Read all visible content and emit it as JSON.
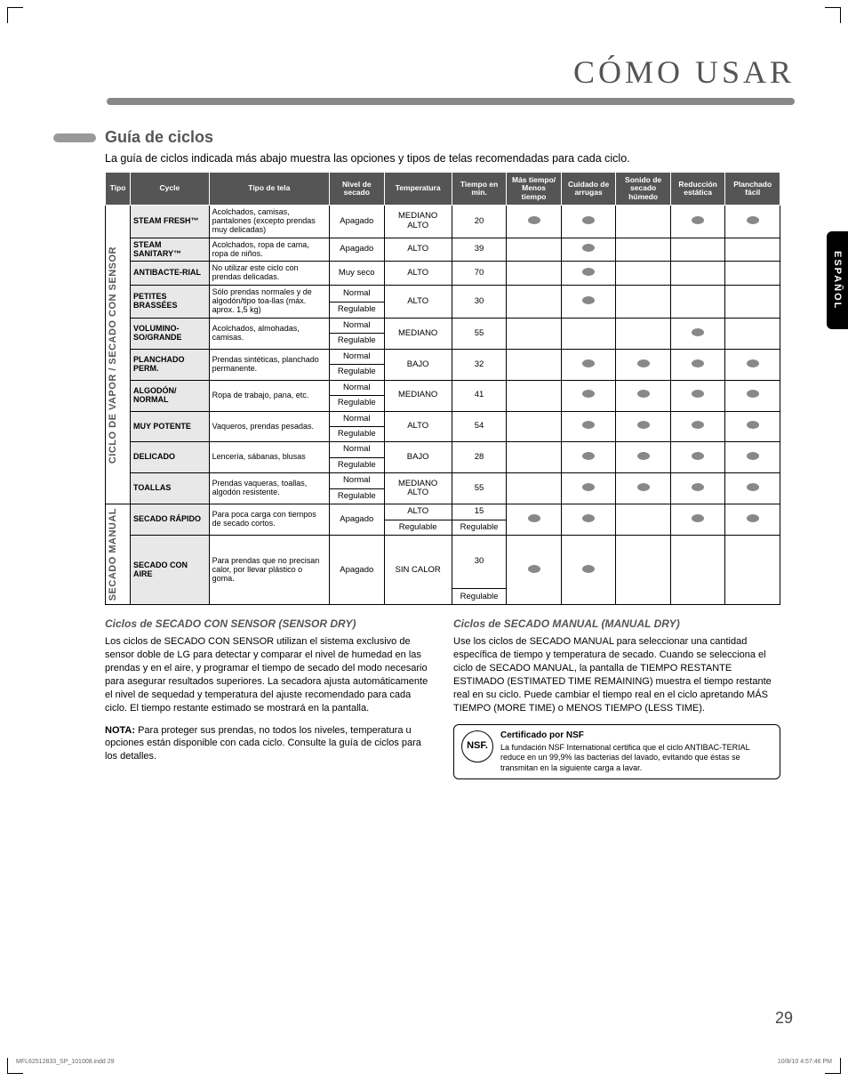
{
  "page_title": "CÓMO USAR",
  "side_tab": "ESPAÑOL",
  "section_title": "Guía de ciclos",
  "intro": "La guía de ciclos indicada más abajo muestra las opciones y tipos de telas recomendadas para cada ciclo.",
  "headers": {
    "tipo": "Tipo",
    "cycle": "Cycle",
    "tipo_tela": "Tipo de tela",
    "nivel": "Nivel de secado",
    "temp": "Temperatura",
    "tiempo": "Tiempo en min.",
    "mas": "Más tiempo/ Menos tiempo",
    "cuidado": "Cuidado de arrugas",
    "sonido": "Sonido de secado húmedo",
    "reduccion": "Reducción estática",
    "planchado": "Planchado fácil"
  },
  "group1_label": "CICLO DE VAPOR / SECADO CON SENSOR",
  "group2_label": "SECADO MANUAL",
  "rows": [
    {
      "cycle": "STEAM FRESH™",
      "fabric": "Acolchados, camisas, pantalones (excepto prendas muy delicadas)",
      "dry": [
        "Apagado"
      ],
      "temp": [
        "MEDIANO ALTO"
      ],
      "time": [
        "20"
      ],
      "mas": true,
      "cuidado": true,
      "sonido": false,
      "reduc": true,
      "plan": true
    },
    {
      "cycle": "STEAM SANITARY™",
      "fabric": "Acolchados, ropa de cama, ropa de niños.",
      "dry": [
        "Apagado"
      ],
      "temp": [
        "ALTO"
      ],
      "time": [
        "39"
      ],
      "mas": false,
      "cuidado": true,
      "sonido": false,
      "reduc": false,
      "plan": false
    },
    {
      "cycle": "ANTIBACTE-RIAL",
      "fabric": "No utilizar este ciclo con prendas delicadas.",
      "dry": [
        "Muy seco"
      ],
      "temp": [
        "ALTO"
      ],
      "time": [
        "70"
      ],
      "mas": false,
      "cuidado": true,
      "sonido": false,
      "reduc": false,
      "plan": false
    },
    {
      "cycle": "PETITES BRASSÉES",
      "fabric": "Sólo prendas normales y de algodón/tipo toa-llas (máx. aprox. 1,5 kg)",
      "dry": [
        "Normal",
        "Regulable"
      ],
      "temp": [
        "ALTO"
      ],
      "time": [
        "30"
      ],
      "mas": false,
      "cuidado": true,
      "sonido": false,
      "reduc": false,
      "plan": false
    },
    {
      "cycle": "VOLUMINO-SO/GRANDE",
      "fabric": "Acolchados, almohadas, camisas.",
      "dry": [
        "Normal",
        "Regulable"
      ],
      "temp": [
        "MEDIANO"
      ],
      "time": [
        "55"
      ],
      "mas": false,
      "cuidado": false,
      "sonido": false,
      "reduc": true,
      "plan": false
    },
    {
      "cycle": "PLANCHADO PERM.",
      "fabric": "Prendas sintéticas, planchado permanente.",
      "dry": [
        "Normal",
        "Regulable"
      ],
      "temp": [
        "BAJO"
      ],
      "time": [
        "32"
      ],
      "mas": false,
      "cuidado": true,
      "sonido": true,
      "reduc": true,
      "plan": true
    },
    {
      "cycle": "ALGODÓN/ NORMAL",
      "fabric": "Ropa de trabajo, pana, etc.",
      "dry": [
        "Normal",
        "Regulable"
      ],
      "temp": [
        "MEDIANO"
      ],
      "time": [
        "41"
      ],
      "mas": false,
      "cuidado": true,
      "sonido": true,
      "reduc": true,
      "plan": true
    },
    {
      "cycle": "MUY POTENTE",
      "fabric": "Vaqueros, prendas pesadas.",
      "dry": [
        "Normal",
        "Regulable"
      ],
      "temp": [
        "ALTO"
      ],
      "time": [
        "54"
      ],
      "mas": false,
      "cuidado": true,
      "sonido": true,
      "reduc": true,
      "plan": true
    },
    {
      "cycle": "DELICADO",
      "fabric": "Lencería, sábanas, blusas",
      "dry": [
        "Normal",
        "Regulable"
      ],
      "temp": [
        "BAJO"
      ],
      "time": [
        "28"
      ],
      "mas": false,
      "cuidado": true,
      "sonido": true,
      "reduc": true,
      "plan": true
    },
    {
      "cycle": "TOALLAS",
      "fabric": "Prendas vaqueras, toallas, algodón resistente.",
      "dry": [
        "Normal",
        "Regulable"
      ],
      "temp": [
        "MEDIANO ALTO"
      ],
      "time": [
        "55"
      ],
      "mas": false,
      "cuidado": true,
      "sonido": true,
      "reduc": true,
      "plan": true
    }
  ],
  "rows_manual": [
    {
      "cycle": "SECADO RÁPIDO",
      "fabric": "Para poca carga con tiempos de secado cortos.",
      "dry": [
        "Apagado"
      ],
      "temp": [
        "ALTO",
        "Regulable"
      ],
      "time": [
        "15",
        "Regulable"
      ],
      "mas": true,
      "cuidado": true,
      "sonido": false,
      "reduc": true,
      "plan": true
    },
    {
      "cycle": "SECADO CON AIRE",
      "fabric": "Para prendas que no precisan calor, por llevar plástico o goma.",
      "dry": [
        "Apagado"
      ],
      "temp": [
        "SIN CALOR"
      ],
      "time": [
        "30",
        "Regulable"
      ],
      "mas": true,
      "cuidado": true,
      "sonido": false,
      "reduc": false,
      "plan": false
    }
  ],
  "sensor_section": {
    "title": "Ciclos de SECADO CON SENSOR (SENSOR DRY)",
    "body": "Los ciclos de SECADO CON SENSOR utilizan el sistema exclusivo de sensor doble de LG para detectar y comparar el nivel de humedad en las prendas y en el aire, y programar el tiempo de secado del modo necesario para asegurar resultados superiores. La secadora ajusta automáticamente el nivel de sequedad y temperatura del ajuste recomendado para cada ciclo. El tiempo restante estimado se mostrará en la pantalla.",
    "nota_label": "NOTA:",
    "nota": " Para proteger sus prendas, no todos los niveles, temperatura u opciones están disponible con cada ciclo. Consulte la guía de ciclos para los detalles."
  },
  "manual_section": {
    "title": "Ciclos de SECADO MANUAL (MANUAL DRY)",
    "body": "Use los ciclos de SECADO MANUAL para seleccionar una cantidad específica de tiempo y temperatura de secado. Cuando se selecciona el ciclo de SECADO MANUAL, la pantalla de TIEMPO RESTANTE ESTIMADO (ESTIMATED TIME REMAINING) muestra el tiempo restante real en su ciclo. Puede cambiar el tiempo real en el ciclo apretando MÁS TIEMPO (MORE TIME) o MENOS TIEMPO (LESS TIME)."
  },
  "nsf": {
    "badge": "NSF.",
    "title": "Certificado por NSF",
    "body": "La fundación NSF International certifica que el ciclo ANTIBAC-TERIAL reduce en un 99,9% las bacterias del lavado, evitando que éstas se transmitan en la siguiente carga a lavar."
  },
  "page_num": "29",
  "footer_left": "MFL62512833_SP_101008.indd   29",
  "footer_right": "10/8/10   4:57:46 PM"
}
